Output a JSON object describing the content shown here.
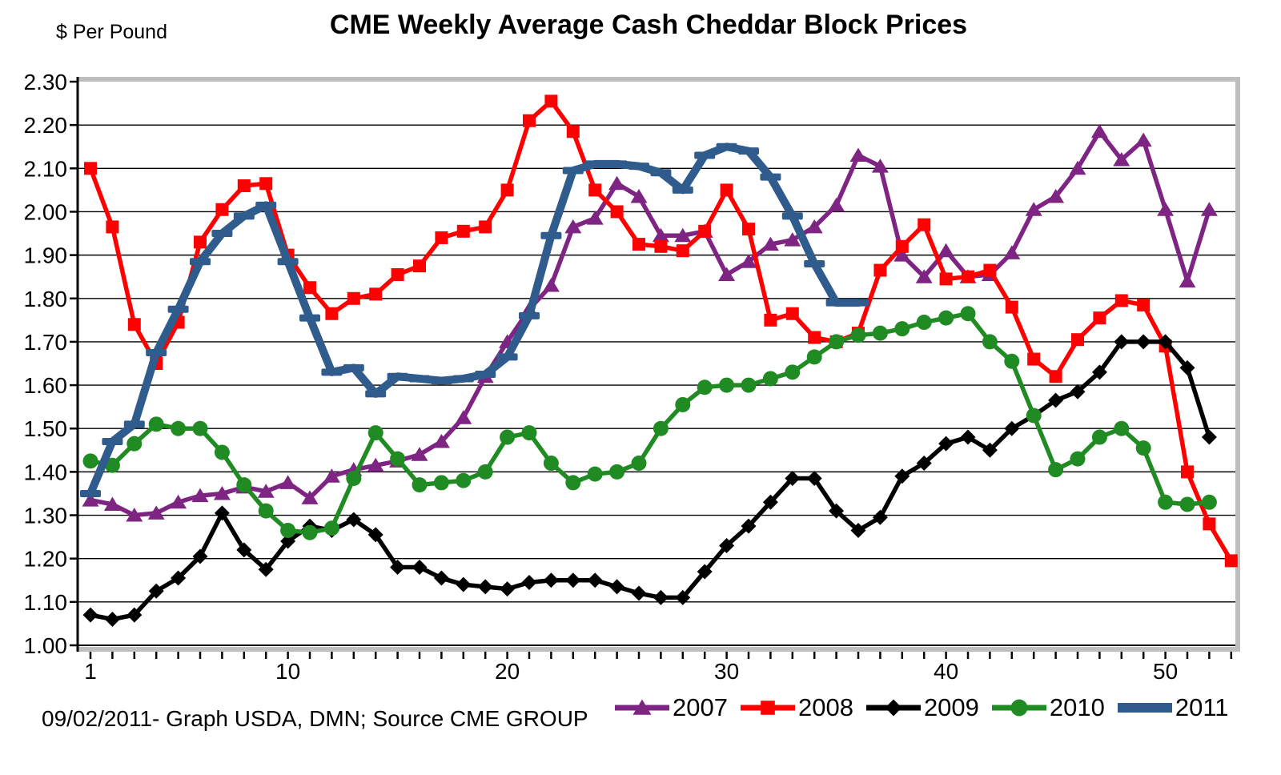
{
  "footer": "09/02/2011- Graph USDA, DMN; Source CME GROUP",
  "chart_data": {
    "type": "line",
    "title": "CME Weekly Average Cash Cheddar Block Prices",
    "ylabel": "$ Per Pound",
    "xlabel": "",
    "ylim": [
      1.0,
      2.3
    ],
    "ytick_step": 0.1,
    "yticks": [
      "2.30",
      "2.20",
      "2.10",
      "2.00",
      "1.90",
      "1.80",
      "1.70",
      "1.60",
      "1.50",
      "1.40",
      "1.30",
      "1.20",
      "1.10",
      "1.00"
    ],
    "xticks": [
      1,
      10,
      20,
      30,
      40,
      50
    ],
    "x_range": [
      1,
      53
    ],
    "x_unit": "week",
    "grid": "horizontal",
    "legend_position": "bottom",
    "border_color": "#BFBFBF",
    "series": [
      {
        "name": "2007",
        "color": "#7E2483",
        "marker": "triangle",
        "line_width": 5.5,
        "values": [
          1.335,
          1.325,
          1.3,
          1.305,
          1.33,
          1.345,
          1.35,
          1.365,
          1.355,
          1.375,
          1.34,
          1.39,
          1.405,
          1.415,
          1.425,
          1.44,
          1.47,
          1.525,
          1.62,
          1.7,
          1.775,
          1.83,
          1.965,
          1.985,
          2.065,
          2.035,
          1.945,
          1.945,
          1.955,
          1.855,
          1.885,
          1.925,
          1.935,
          1.965,
          2.015,
          2.13,
          2.105,
          1.9,
          1.85,
          1.91,
          1.85,
          1.855,
          1.905,
          2.005,
          2.035,
          2.1,
          2.185,
          2.12,
          2.165,
          2.005,
          1.84,
          2.005
        ]
      },
      {
        "name": "2008",
        "color": "#FF0000",
        "marker": "square",
        "line_width": 5.5,
        "values": [
          2.1,
          1.965,
          1.74,
          1.65,
          1.745,
          1.93,
          2.005,
          2.06,
          2.065,
          1.9,
          1.825,
          1.765,
          1.8,
          1.81,
          1.855,
          1.875,
          1.94,
          1.955,
          1.965,
          2.05,
          2.21,
          2.255,
          2.185,
          2.05,
          2.0,
          1.925,
          1.92,
          1.91,
          1.955,
          2.05,
          1.96,
          1.75,
          1.765,
          1.71,
          1.7,
          1.72,
          1.865,
          1.92,
          1.97,
          1.845,
          1.85,
          1.865,
          1.78,
          1.66,
          1.62,
          1.705,
          1.755,
          1.795,
          1.785,
          1.69,
          1.4,
          1.28,
          1.195
        ]
      },
      {
        "name": "2009",
        "color": "#000000",
        "marker": "diamond",
        "line_width": 5.5,
        "values": [
          1.07,
          1.06,
          1.07,
          1.125,
          1.155,
          1.205,
          1.305,
          1.22,
          1.175,
          1.24,
          1.275,
          1.265,
          1.29,
          1.255,
          1.18,
          1.18,
          1.155,
          1.14,
          1.135,
          1.13,
          1.145,
          1.15,
          1.15,
          1.15,
          1.135,
          1.12,
          1.11,
          1.11,
          1.17,
          1.23,
          1.275,
          1.33,
          1.385,
          1.385,
          1.31,
          1.265,
          1.295,
          1.39,
          1.42,
          1.465,
          1.48,
          1.45,
          1.5,
          1.53,
          1.565,
          1.585,
          1.63,
          1.7,
          1.7,
          1.7,
          1.64,
          1.48
        ]
      },
      {
        "name": "2010",
        "color": "#1F8B22",
        "marker": "circle",
        "line_width": 5.5,
        "values": [
          1.425,
          1.415,
          1.465,
          1.51,
          1.5,
          1.5,
          1.445,
          1.37,
          1.31,
          1.265,
          1.26,
          1.27,
          1.385,
          1.49,
          1.43,
          1.37,
          1.375,
          1.38,
          1.4,
          1.48,
          1.49,
          1.42,
          1.375,
          1.395,
          1.4,
          1.42,
          1.5,
          1.555,
          1.595,
          1.6,
          1.6,
          1.615,
          1.63,
          1.665,
          1.7,
          1.715,
          1.72,
          1.73,
          1.745,
          1.755,
          1.765,
          1.7,
          1.655,
          1.53,
          1.405,
          1.43,
          1.48,
          1.5,
          1.455,
          1.33,
          1.325,
          1.33
        ]
      },
      {
        "name": "2011",
        "color": "#2F5C8C",
        "marker": "dash",
        "line_width": 10,
        "values": [
          1.35,
          1.47,
          1.51,
          1.675,
          1.775,
          1.885,
          1.95,
          1.99,
          2.015,
          1.885,
          1.755,
          1.63,
          1.64,
          1.58,
          1.62,
          1.615,
          1.61,
          1.615,
          1.625,
          1.665,
          1.76,
          1.945,
          2.095,
          2.11,
          2.11,
          2.105,
          2.09,
          2.05,
          2.13,
          2.15,
          2.14,
          2.08,
          1.99,
          1.88,
          1.79,
          1.79
        ]
      }
    ]
  }
}
